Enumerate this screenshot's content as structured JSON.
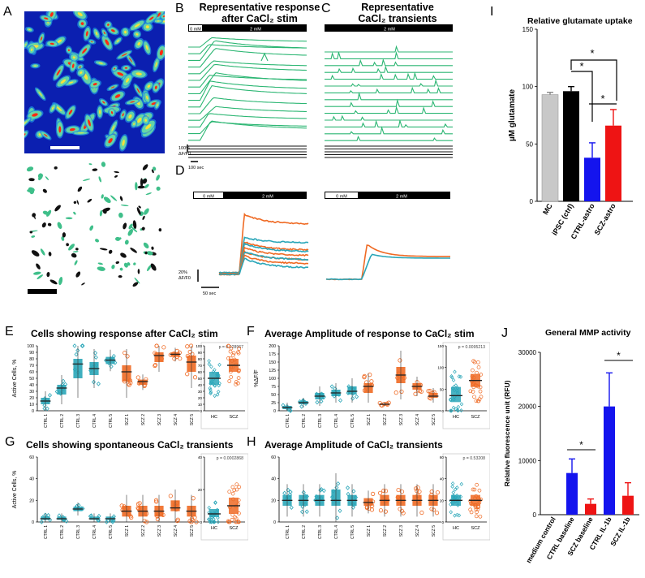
{
  "panel_letters": {
    "A": "A",
    "B": "B",
    "C": "C",
    "D": "D",
    "E": "E",
    "F": "F",
    "G": "G",
    "H": "H",
    "I": "I",
    "J": "J"
  },
  "titles": {
    "B_line1": "Representative response",
    "B_line2": "after CaCl₂ stim",
    "C_line1": "Representative",
    "C_line2": "CaCl₂ transients",
    "E": "Cells showing response after CaCl₂ stim",
    "F": "Average Amplitude of response to CaCl₂ stim",
    "G": "Cells showing spontaneous CaCl₂ transients",
    "H": "Average Amplitude of CaCl₂ transients",
    "I": "Relative glutamate uptake",
    "J": "General MMP activity"
  },
  "stim_bar": {
    "zero": "0 mM",
    "two": "2 mM"
  },
  "scale": {
    "B_amp_1": "100%",
    "B_amp_2": "ΔF/F0",
    "B_time": "100 sec",
    "D_amp_1": "20%",
    "D_amp_2": "ΔF/F0",
    "D_time": "50 sec"
  },
  "stats": {
    "E_p": "p = 0.028967",
    "F_p": "p = 0.0095213",
    "G_p": "p = 0.0002868",
    "H_p": "p = 0.53208"
  },
  "axes": {
    "E_ylabel": "Active Cells, %",
    "F_ylabel": "%ΔF/F",
    "G_ylabel": "Active Cells, %",
    "lines": [
      "CTRL 1",
      "CTRL 2",
      "CTRL 3",
      "CTRL 4",
      "CTRL 5",
      "SCZ 1",
      "SCZ 2",
      "SCZ 3",
      "SCZ 4",
      "SCZ 5"
    ],
    "groups": [
      "HC",
      "SCZ"
    ]
  },
  "colors": {
    "ctrl": "#2aa6b8",
    "scz": "#ef6a24",
    "green": "#2cb673",
    "grey_bar": "#c8c8c8",
    "black_bar": "#000000",
    "blue_bar": "#1414ee",
    "red_bar": "#ee1414"
  },
  "chart_data": [
    {
      "id": "E",
      "type": "box",
      "title": "Cells showing response after CaCl₂ stim",
      "ylabel": "Active Cells, %",
      "ylim": [
        0,
        100
      ],
      "yticks": [
        0,
        10,
        20,
        30,
        40,
        50,
        60,
        70,
        80,
        90,
        100
      ],
      "categories": [
        "CTRL 1",
        "CTRL 2",
        "CTRL 3",
        "CTRL 4",
        "CTRL 5",
        "SCZ 1",
        "SCZ 2",
        "SCZ 3",
        "SCZ 4",
        "SCZ 5"
      ],
      "medians": [
        15,
        35,
        72,
        65,
        78,
        60,
        45,
        85,
        87,
        75
      ],
      "q1": [
        10,
        25,
        50,
        55,
        72,
        45,
        40,
        75,
        83,
        60
      ],
      "q3": [
        20,
        40,
        80,
        75,
        83,
        70,
        48,
        90,
        90,
        85
      ],
      "groups": {
        "categories": [
          "HC",
          "SCZ"
        ],
        "medians": [
          50,
          70
        ],
        "q1": [
          40,
          60
        ],
        "q3": [
          60,
          80
        ],
        "p": "p = 0.028967"
      }
    },
    {
      "id": "F",
      "type": "box",
      "title": "Average Amplitude of response to CaCl₂ stim",
      "ylabel": "%ΔF/F",
      "ylim": [
        0,
        200
      ],
      "yticks": [
        0,
        25,
        50,
        75,
        100,
        125,
        150,
        175,
        200
      ],
      "categories": [
        "CTRL 1",
        "CTRL 2",
        "CTRL 3",
        "CTRL 4",
        "CTRL 5",
        "SCZ 1",
        "SCZ 2",
        "SCZ 3",
        "SCZ 4",
        "SCZ 5"
      ],
      "medians": [
        10,
        25,
        45,
        55,
        60,
        75,
        20,
        110,
        75,
        45
      ],
      "q1": [
        5,
        20,
        35,
        45,
        50,
        55,
        18,
        85,
        65,
        40
      ],
      "q3": [
        15,
        30,
        55,
        65,
        75,
        85,
        22,
        135,
        85,
        55
      ],
      "groups": {
        "categories": [
          "HC",
          "SCZ"
        ],
        "medians": [
          35,
          70
        ],
        "q1": [
          20,
          55
        ],
        "q3": [
          55,
          85
        ],
        "ylim": [
          0,
          150
        ],
        "yticks": [
          0,
          50,
          100,
          150
        ],
        "p": "p = 0.0095213"
      }
    },
    {
      "id": "G",
      "type": "box",
      "title": "Cells showing spontaneous CaCl₂ transients",
      "ylabel": "Active Cells, %",
      "ylim": [
        0,
        60
      ],
      "yticks": [
        0,
        20,
        40,
        60
      ],
      "categories": [
        "CTRL 1",
        "CTRL 2",
        "CTRL 3",
        "CTRL 4",
        "CTRL 5",
        "SCZ 1",
        "SCZ 2",
        "SCZ 3",
        "SCZ 4",
        "SCZ 5"
      ],
      "medians": [
        3,
        3,
        12,
        3,
        3,
        10,
        10,
        10,
        13,
        10
      ],
      "q1": [
        2,
        2,
        10,
        2,
        2,
        5,
        5,
        5,
        10,
        5
      ],
      "q3": [
        5,
        5,
        14,
        5,
        5,
        15,
        15,
        15,
        20,
        15
      ],
      "groups": {
        "categories": [
          "HC",
          "SCZ"
        ],
        "medians": [
          5,
          10
        ],
        "q1": [
          3,
          5
        ],
        "q3": [
          8,
          15
        ],
        "ylim": [
          0,
          40
        ],
        "yticks": [
          0,
          20,
          40
        ],
        "p": "p = 0.0002868"
      }
    },
    {
      "id": "H",
      "type": "box",
      "title": "Average Amplitude of CaCl₂ transients",
      "ylabel": "",
      "ylim": [
        0,
        60
      ],
      "yticks": [
        0,
        20,
        40,
        60
      ],
      "categories": [
        "CTRL 1",
        "CTRL 2",
        "CTRL 3",
        "CTRL 4",
        "CTRL 5",
        "SCZ 1",
        "SCZ 2",
        "SCZ 3",
        "SCZ 4",
        "SCZ 5"
      ],
      "medians": [
        20,
        20,
        20,
        20,
        20,
        18,
        20,
        20,
        20,
        20
      ],
      "q1": [
        15,
        15,
        15,
        15,
        15,
        15,
        15,
        15,
        15,
        15
      ],
      "q3": [
        25,
        25,
        25,
        30,
        25,
        22,
        25,
        25,
        25,
        25
      ],
      "groups": {
        "categories": [
          "HC",
          "SCZ"
        ],
        "medians": [
          20,
          20
        ],
        "q1": [
          15,
          15
        ],
        "q3": [
          25,
          25
        ],
        "ylim": [
          0,
          60
        ],
        "yticks": [
          0,
          20,
          40,
          60
        ],
        "p": "p = 0.53208"
      }
    },
    {
      "id": "I",
      "type": "bar",
      "title": "Relative glutamate uptake",
      "ylabel": "µM glutamate",
      "ylim": [
        0,
        150
      ],
      "yticks": [
        0,
        50,
        100,
        150
      ],
      "categories": [
        "MC",
        "iPSC (ctrl)",
        "CTRL-astro",
        "SCZ-astro"
      ],
      "values": [
        93,
        96,
        38,
        66
      ],
      "errors": [
        2,
        4,
        13,
        14
      ],
      "colors": [
        "#c8c8c8",
        "#000000",
        "#1414ee",
        "#ee1414"
      ],
      "annotations": [
        "*",
        "*",
        "*"
      ]
    },
    {
      "id": "J",
      "type": "bar",
      "title": "General MMP activity",
      "ylabel": "Relative fluorescence unit (RFU)",
      "ylim": [
        0,
        30000
      ],
      "yticks": [
        0,
        10000,
        20000,
        30000
      ],
      "categories": [
        "medium control",
        "CTRL baseline",
        "SCZ baseline",
        "CTRL IL-1b",
        "SCZ IL-1b"
      ],
      "values": [
        0,
        7700,
        2000,
        20000,
        3500
      ],
      "errors": [
        0,
        2600,
        900,
        6200,
        2400
      ],
      "colors": [
        "#1414ee",
        "#1414ee",
        "#ee1414",
        "#1414ee",
        "#ee1414"
      ],
      "annotations": [
        "*",
        "*"
      ]
    }
  ]
}
